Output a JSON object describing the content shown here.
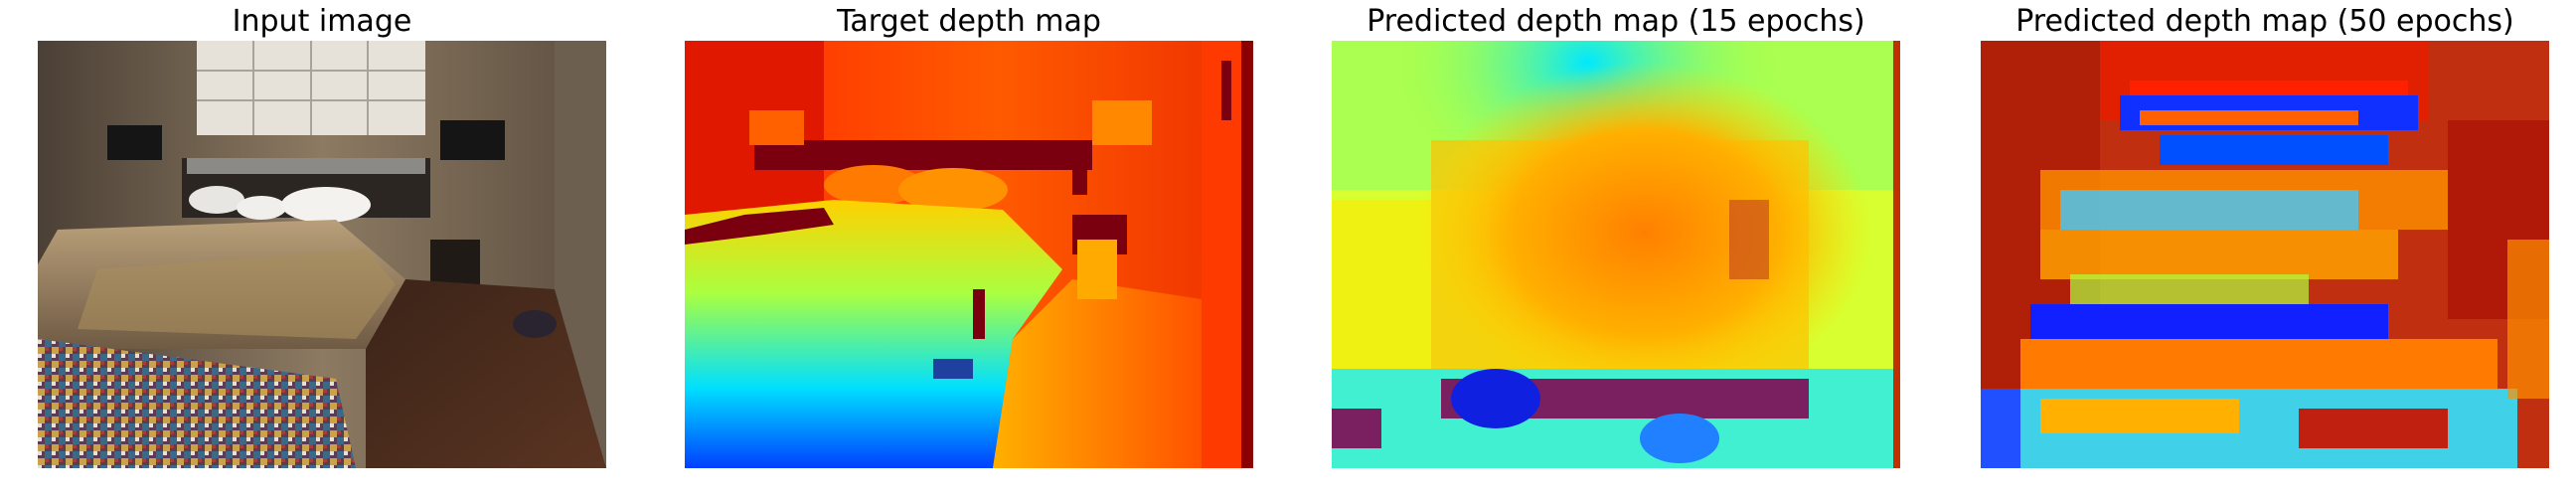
{
  "panels": [
    {
      "id": "input",
      "title": "Input image"
    },
    {
      "id": "target",
      "title": "Target depth map"
    },
    {
      "id": "pred15",
      "title": "Predicted depth map (15 epochs)"
    },
    {
      "id": "pred50",
      "title": "Predicted depth map (50 epochs)"
    }
  ],
  "colormap": "jet",
  "colors": {
    "near": "#0022ff",
    "mid": "#ffff00",
    "far": "#8b0000"
  }
}
